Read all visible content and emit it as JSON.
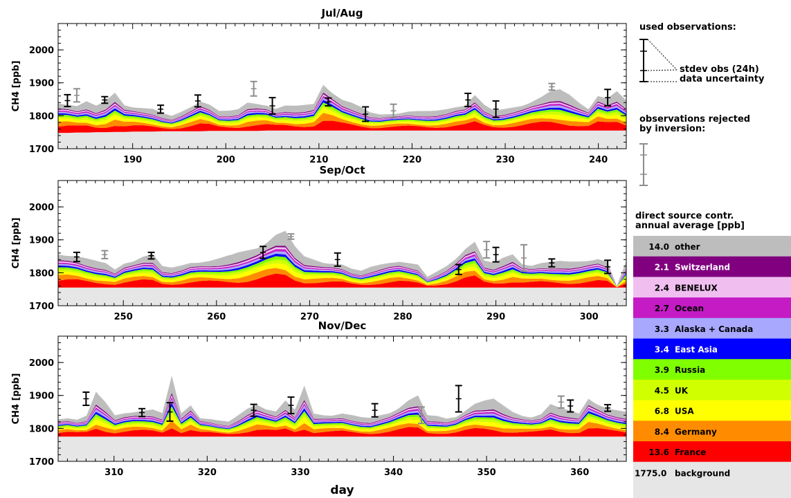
{
  "chart_data": {
    "type": "area",
    "xlabel": "day",
    "ylabel": "CH4 [ppb]",
    "ylim": [
      1700,
      2080
    ],
    "yticks": [
      1700,
      1800,
      1900,
      2000
    ],
    "stack_order": [
      "background",
      "France",
      "Germany",
      "USA",
      "UK",
      "Russia",
      "East Asia",
      "Alaska + Canada",
      "Ocean",
      "BENELUX",
      "Switzerland",
      "other"
    ],
    "panels": [
      {
        "title": "Jul/Aug",
        "xlim": [
          182,
          243
        ],
        "xticks": [
          190,
          200,
          210,
          220,
          230,
          240
        ],
        "background_ppb": [
          1748,
          1748,
          1749,
          1749,
          1750,
          1750,
          1751,
          1751,
          1752,
          1752,
          1752,
          1753,
          1753,
          1753,
          1753,
          1753,
          1754,
          1754,
          1754,
          1754,
          1754,
          1754,
          1755,
          1755,
          1755,
          1755,
          1755,
          1755,
          1755,
          1755,
          1755,
          1755,
          1755,
          1755,
          1755,
          1755,
          1755,
          1755,
          1755,
          1755,
          1755,
          1755,
          1755,
          1755,
          1755,
          1755,
          1755,
          1755,
          1755,
          1755,
          1755,
          1755,
          1755,
          1755,
          1755,
          1755,
          1755,
          1755,
          1755,
          1755,
          1755
        ],
        "total_ppb": [
          1838,
          1832,
          1826,
          1840,
          1830,
          1845,
          1870,
          1832,
          1824,
          1820,
          1818,
          1808,
          1800,
          1812,
          1826,
          1842,
          1830,
          1812,
          1815,
          1820,
          1840,
          1836,
          1830,
          1818,
          1828,
          1830,
          1833,
          1836,
          1894,
          1866,
          1844,
          1836,
          1826,
          1810,
          1804,
          1805,
          1806,
          1810,
          1812,
          1814,
          1816,
          1820,
          1826,
          1830,
          1858,
          1830,
          1816,
          1820,
          1825,
          1830,
          1840,
          1852,
          1870,
          1880,
          1864,
          1840,
          1820,
          1858,
          1848,
          1870,
          1846
        ],
        "obs_used": [
          {
            "day": 183,
            "value": 1846,
            "err": 18
          },
          {
            "day": 187,
            "value": 1848,
            "err": 10
          },
          {
            "day": 193,
            "value": 1820,
            "err": 12
          },
          {
            "day": 197,
            "value": 1845,
            "err": 18
          },
          {
            "day": 205,
            "value": 1830,
            "err": 25
          },
          {
            "day": 211,
            "value": 1842,
            "err": 12
          },
          {
            "day": 215,
            "value": 1805,
            "err": 22
          },
          {
            "day": 226,
            "value": 1848,
            "err": 20
          },
          {
            "day": 229,
            "value": 1820,
            "err": 25
          },
          {
            "day": 241,
            "value": 1855,
            "err": 25
          }
        ],
        "obs_rejected": [
          {
            "day": 184,
            "value": 1862,
            "err": 20
          },
          {
            "day": 203,
            "value": 1882,
            "err": 22
          },
          {
            "day": 218,
            "value": 1815,
            "err": 20
          },
          {
            "day": 235,
            "value": 1888,
            "err": 10
          }
        ]
      },
      {
        "title": "Sep/Oct",
        "xlim": [
          243,
          304
        ],
        "xticks": [
          250,
          260,
          270,
          280,
          290,
          300
        ],
        "background_ppb": [
          1755,
          1755,
          1755,
          1755,
          1755,
          1755,
          1755,
          1755,
          1755,
          1755,
          1755,
          1755,
          1755,
          1755,
          1755,
          1755,
          1755,
          1755,
          1755,
          1755,
          1755,
          1755,
          1755,
          1755,
          1755,
          1755,
          1755,
          1755,
          1755,
          1755,
          1755,
          1755,
          1755,
          1755,
          1755,
          1755,
          1755,
          1755,
          1755,
          1755,
          1755,
          1755,
          1755,
          1755,
          1755,
          1755,
          1755,
          1755,
          1755,
          1755,
          1755,
          1755,
          1755,
          1755,
          1755,
          1755,
          1755,
          1755,
          1755,
          1755,
          1755
        ],
        "total_ppb": [
          1856,
          1850,
          1846,
          1840,
          1836,
          1830,
          1810,
          1828,
          1834,
          1845,
          1852,
          1820,
          1816,
          1822,
          1830,
          1830,
          1832,
          1840,
          1852,
          1862,
          1868,
          1874,
          1888,
          1908,
          1920,
          1880,
          1850,
          1840,
          1830,
          1826,
          1822,
          1810,
          1806,
          1818,
          1825,
          1830,
          1832,
          1826,
          1822,
          1788,
          1804,
          1820,
          1842,
          1870,
          1888,
          1834,
          1830,
          1846,
          1856,
          1826,
          1820,
          1826,
          1830,
          1836,
          1834,
          1834,
          1836,
          1840,
          1830,
          1760,
          1836
        ],
        "obs_used": [
          {
            "day": 245,
            "value": 1848,
            "err": 14
          },
          {
            "day": 253,
            "value": 1852,
            "err": 10
          },
          {
            "day": 265,
            "value": 1862,
            "err": 18
          },
          {
            "day": 273,
            "value": 1840,
            "err": 20
          },
          {
            "day": 286,
            "value": 1810,
            "err": 15
          },
          {
            "day": 290,
            "value": 1855,
            "err": 22
          },
          {
            "day": 296,
            "value": 1830,
            "err": 12
          },
          {
            "day": 302,
            "value": 1818,
            "err": 20
          }
        ],
        "obs_rejected": [
          {
            "day": 248,
            "value": 1855,
            "err": 12
          },
          {
            "day": 268,
            "value": 1910,
            "err": 8
          },
          {
            "day": 289,
            "value": 1870,
            "err": 25
          },
          {
            "day": 293,
            "value": 1845,
            "err": 40
          }
        ]
      },
      {
        "title": "Nov/Dec",
        "xlim": [
          304,
          365
        ],
        "xticks": [
          310,
          320,
          330,
          340,
          350,
          360
        ],
        "background_ppb": [
          1775,
          1775,
          1775,
          1775,
          1775,
          1775,
          1775,
          1775,
          1775,
          1775,
          1775,
          1775,
          1775,
          1775,
          1775,
          1775,
          1775,
          1775,
          1775,
          1775,
          1775,
          1775,
          1775,
          1775,
          1775,
          1775,
          1775,
          1775,
          1775,
          1775,
          1775,
          1775,
          1775,
          1775,
          1775,
          1775,
          1775,
          1775,
          1775,
          1775,
          1775,
          1775,
          1775,
          1775,
          1775,
          1775,
          1775,
          1775,
          1775,
          1775,
          1775,
          1775,
          1775,
          1775,
          1775,
          1775,
          1775,
          1775,
          1775,
          1775,
          1775
        ],
        "total_ppb": [
          1828,
          1830,
          1824,
          1836,
          1910,
          1880,
          1840,
          1846,
          1848,
          1850,
          1854,
          1846,
          1960,
          1846,
          1870,
          1830,
          1826,
          1822,
          1820,
          1840,
          1860,
          1872,
          1856,
          1848,
          1880,
          1856,
          1930,
          1845,
          1840,
          1838,
          1842,
          1838,
          1834,
          1832,
          1840,
          1846,
          1860,
          1880,
          1895,
          1840,
          1838,
          1830,
          1834,
          1852,
          1870,
          1880,
          1890,
          1870,
          1850,
          1838,
          1832,
          1840,
          1870,
          1862,
          1855,
          1845,
          1890,
          1870,
          1856,
          1852,
          1850
        ],
        "obs_used": [
          {
            "day": 307,
            "value": 1890,
            "err": 20
          },
          {
            "day": 313,
            "value": 1848,
            "err": 12
          },
          {
            "day": 316,
            "value": 1850,
            "err": 28
          },
          {
            "day": 325,
            "value": 1855,
            "err": 18
          },
          {
            "day": 329,
            "value": 1870,
            "err": 25
          },
          {
            "day": 338,
            "value": 1855,
            "err": 20
          },
          {
            "day": 347,
            "value": 1890,
            "err": 40
          },
          {
            "day": 359,
            "value": 1868,
            "err": 18
          },
          {
            "day": 363,
            "value": 1862,
            "err": 10
          }
        ],
        "obs_rejected": [
          {
            "day": 343,
            "value": 1840,
            "err": 25
          },
          {
            "day": 358,
            "value": 1880,
            "err": 18
          }
        ]
      }
    ],
    "legend": {
      "used_title": "used observations:",
      "stdev_label": "stdev obs (24h)",
      "uncert_label": "data uncertainty",
      "rejected_title_1": "observations rejected",
      "rejected_title_2": "by inversion:",
      "contrib_title_1": "direct source contr.",
      "contrib_title_2": "annual average [ppb]",
      "rows": [
        {
          "value": "14.0",
          "name": "other",
          "color": "#bdbdbd",
          "text": "#000000"
        },
        {
          "value": "2.1",
          "name": "Switzerland",
          "color": "#800080",
          "text": "#ffffff"
        },
        {
          "value": "2.4",
          "name": "BENELUX",
          "color": "#f0bff0",
          "text": "#000000"
        },
        {
          "value": "2.7",
          "name": "Ocean",
          "color": "#c41bc4",
          "text": "#000000"
        },
        {
          "value": "3.3",
          "name": "Alaska + Canada",
          "color": "#a8a8ff",
          "text": "#000000"
        },
        {
          "value": "3.4",
          "name": "East Asia",
          "color": "#0000ff",
          "text": "#ffffff"
        },
        {
          "value": "3.9",
          "name": "Russia",
          "color": "#7fff00",
          "text": "#000000"
        },
        {
          "value": "4.5",
          "name": "UK",
          "color": "#d0ff00",
          "text": "#000000"
        },
        {
          "value": "6.8",
          "name": "USA",
          "color": "#ffff00",
          "text": "#000000"
        },
        {
          "value": "8.4",
          "name": "Germany",
          "color": "#ff8c00",
          "text": "#000000"
        },
        {
          "value": "13.6",
          "name": "France",
          "color": "#ff0000",
          "text": "#000000"
        }
      ],
      "background_value": "1775.0",
      "background_name": "background",
      "background_color": "#e6e6e6"
    },
    "grid": false
  }
}
